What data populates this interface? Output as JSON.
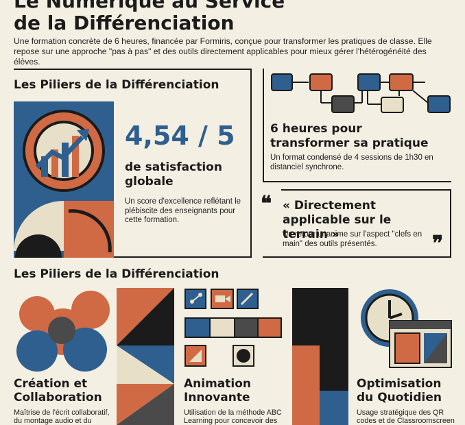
{
  "header": {
    "title_line1": "Le Numérique au Service",
    "title_line2": "de la Différenciation",
    "intro": "Une formation concrète de 6 heures, financée par Formiris, conçue pour transformer les pratiques de classe. Elle repose sur une approche \"pas à pas\" et des outils directement applicables pour mieux gérer l'hétérogénéité des élèves."
  },
  "satisfaction": {
    "heading": "Les Piliers de la Différenciation",
    "score": "4,54 / 5",
    "label": "de satisfaction globale",
    "description": "Un score d'excellence reflétant le plébiscite des enseignants pour cette formation."
  },
  "duration": {
    "title": "6 heures pour transformer sa pratique",
    "description": "Un format condensé de 4 sessions de 1h30 en distanciel synchrone."
  },
  "quote": {
    "open_mark": "❝",
    "close_mark": "❞",
    "title": "« Directement applicable sur le terrain »",
    "description": "Un retour unanime sur l'aspect \"clefs en main\" des outils présentés."
  },
  "pillars": {
    "heading": "Les Piliers de la Différenciation",
    "items": [
      {
        "title": "Création et Collaboration",
        "description": "Maîtrise de l'écrit collaboratif, du montage audio et du"
      },
      {
        "title": "Animation Innovante",
        "description": "Utilisation de la méthode ABC Learning pour concevoir des"
      },
      {
        "title": "Optimisation du Quotidien",
        "description": "Usage stratégique des QR codes et de Classroomscreen"
      }
    ]
  },
  "colors": {
    "blue": "#2e5f8f",
    "orange": "#d06a44",
    "cream": "#e8dfc8",
    "dark": "#1b1b1b",
    "grey": "#4a4a4a",
    "background": "#f3efe2"
  },
  "icons": [
    "growth-chart-icon",
    "quote-open-icon",
    "quote-close-icon",
    "network-icon",
    "camera-icon",
    "pen-icon",
    "clock-icon",
    "browser-window-icon"
  ]
}
